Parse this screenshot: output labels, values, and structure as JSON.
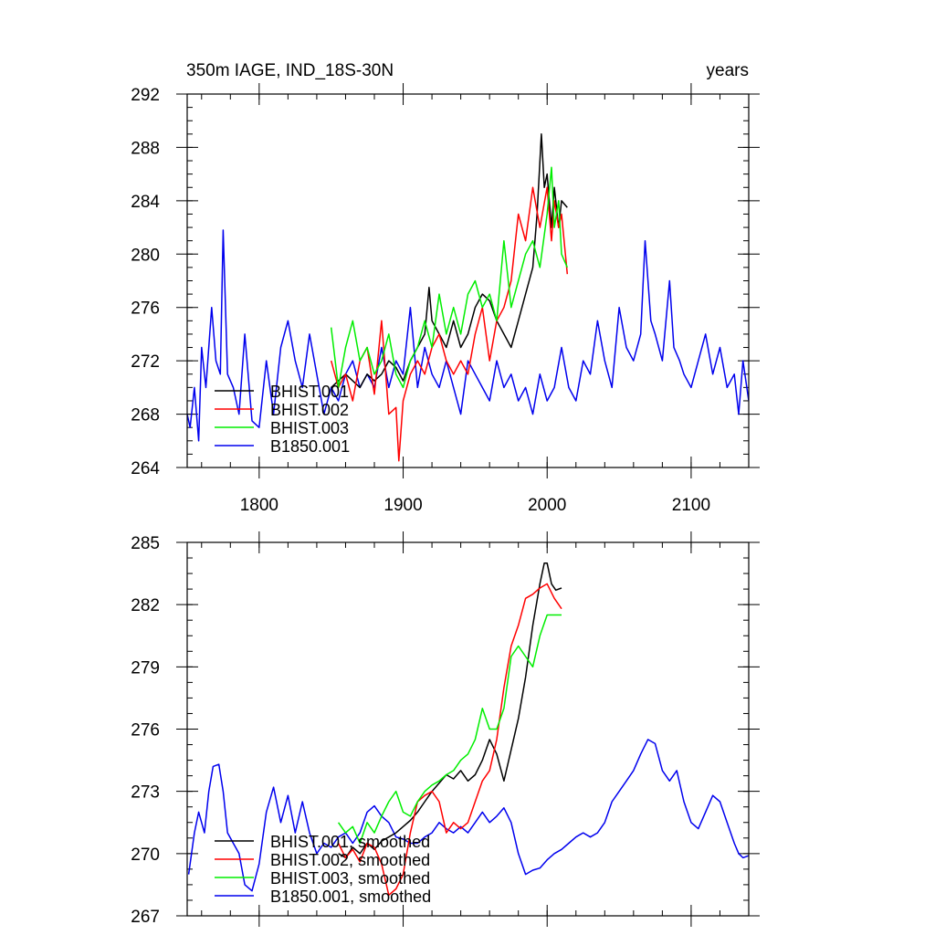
{
  "chart_data": [
    {
      "type": "line",
      "title_left": "350m IAGE, IND_18S-30N",
      "title_right": "years",
      "xlim": [
        1750,
        2140
      ],
      "ylim": [
        264,
        292
      ],
      "yticks": [
        264,
        268,
        272,
        276,
        280,
        284,
        288,
        292
      ],
      "xticks": [
        1800,
        1900,
        2000,
        2100
      ],
      "legend": "bottom-left",
      "series": [
        {
          "name": "BHIST.001",
          "color": "#000000",
          "x": [
            1850,
            1855,
            1860,
            1865,
            1870,
            1875,
            1880,
            1885,
            1890,
            1895,
            1900,
            1905,
            1910,
            1915,
            1918,
            1920,
            1925,
            1930,
            1935,
            1940,
            1945,
            1950,
            1955,
            1960,
            1965,
            1970,
            1975,
            1980,
            1985,
            1990,
            1993,
            1996,
            1998,
            2000,
            2003,
            2005,
            2008,
            2010,
            2014
          ],
          "y": [
            270,
            270.5,
            271,
            270.5,
            270,
            271,
            270.5,
            271,
            272,
            271.5,
            270.5,
            272,
            273,
            274,
            277.5,
            275,
            274,
            273,
            275,
            273,
            274,
            276,
            277,
            276.5,
            275,
            274,
            273,
            275,
            277,
            279,
            283,
            289,
            285,
            286,
            282,
            285,
            282,
            284,
            283.5
          ]
        },
        {
          "name": "BHIST.002",
          "color": "#ff0000",
          "x": [
            1850,
            1855,
            1860,
            1865,
            1870,
            1875,
            1880,
            1885,
            1890,
            1895,
            1897,
            1900,
            1905,
            1910,
            1915,
            1920,
            1925,
            1930,
            1935,
            1940,
            1945,
            1950,
            1955,
            1960,
            1965,
            1970,
            1975,
            1980,
            1985,
            1990,
            1995,
            2000,
            2003,
            2005,
            2008,
            2010,
            2014
          ],
          "y": [
            272,
            270,
            271,
            269,
            272,
            273,
            269.5,
            275,
            268,
            268.5,
            264.5,
            269,
            271,
            272,
            271,
            273,
            274,
            272,
            271,
            272,
            271,
            274,
            276,
            272,
            275,
            276,
            278,
            283,
            281,
            285,
            282,
            285,
            281,
            284,
            282,
            283,
            278.5
          ]
        },
        {
          "name": "BHIST.003",
          "color": "#00ee00",
          "x": [
            1850,
            1855,
            1860,
            1865,
            1870,
            1875,
            1880,
            1885,
            1890,
            1895,
            1900,
            1905,
            1910,
            1915,
            1920,
            1925,
            1930,
            1935,
            1940,
            1945,
            1950,
            1955,
            1960,
            1965,
            1970,
            1975,
            1980,
            1985,
            1990,
            1995,
            2000,
            2003,
            2005,
            2008,
            2010,
            2014
          ],
          "y": [
            274.5,
            270,
            273,
            275,
            272,
            273,
            271,
            272,
            274,
            271,
            270,
            272,
            273,
            275,
            273,
            277,
            274,
            276,
            274,
            277,
            278,
            276,
            277,
            275,
            281,
            276,
            278,
            280,
            281,
            279,
            283,
            286.5,
            282,
            284,
            280,
            279
          ]
        },
        {
          "name": "B1850.001",
          "color": "#0000ee",
          "x": [
            1750,
            1752,
            1755,
            1758,
            1760,
            1763,
            1767,
            1770,
            1773,
            1775,
            1778,
            1782,
            1786,
            1790,
            1795,
            1800,
            1805,
            1810,
            1815,
            1820,
            1825,
            1830,
            1835,
            1840,
            1845,
            1850,
            1855,
            1860,
            1865,
            1870,
            1875,
            1880,
            1885,
            1890,
            1895,
            1900,
            1905,
            1910,
            1915,
            1920,
            1925,
            1930,
            1935,
            1940,
            1945,
            1950,
            1955,
            1960,
            1965,
            1970,
            1975,
            1980,
            1985,
            1990,
            1995,
            2000,
            2005,
            2010,
            2015,
            2020,
            2025,
            2030,
            2035,
            2040,
            2045,
            2050,
            2055,
            2060,
            2065,
            2068,
            2072,
            2075,
            2080,
            2085,
            2088,
            2092,
            2095,
            2100,
            2105,
            2110,
            2115,
            2120,
            2125,
            2130,
            2133,
            2136,
            2140
          ],
          "y": [
            268,
            267,
            270,
            266,
            273,
            270,
            276,
            272,
            271,
            281.8,
            271,
            270,
            268,
            274,
            267.5,
            267,
            272,
            268,
            273,
            275,
            272,
            270,
            274,
            271,
            268,
            270,
            269,
            271,
            272,
            270,
            271,
            270,
            273,
            270,
            272,
            271,
            276,
            270,
            273,
            271,
            270,
            272,
            270,
            268,
            272,
            271,
            270,
            269,
            272,
            270,
            271,
            269,
            270,
            268,
            271,
            269,
            270,
            273,
            270,
            269,
            272,
            271,
            275,
            272,
            270,
            276,
            273,
            272,
            274,
            281,
            275,
            274,
            272,
            278,
            273,
            272,
            271,
            270,
            272,
            274,
            271,
            273,
            270,
            271,
            268,
            272,
            269
          ]
        }
      ]
    },
    {
      "type": "line",
      "xlim": [
        1750,
        2140
      ],
      "ylim": [
        267,
        285
      ],
      "yticks": [
        267,
        270,
        273,
        276,
        279,
        282,
        285
      ],
      "legend": "bottom-left",
      "series": [
        {
          "name": "BHIST.001, smoothed",
          "color": "#000000",
          "x": [
            1855,
            1860,
            1865,
            1870,
            1875,
            1880,
            1885,
            1890,
            1895,
            1900,
            1905,
            1910,
            1915,
            1920,
            1925,
            1930,
            1935,
            1940,
            1945,
            1950,
            1955,
            1960,
            1965,
            1970,
            1975,
            1980,
            1985,
            1990,
            1995,
            1998,
            2000,
            2003,
            2006,
            2010
          ],
          "y": [
            270,
            269.8,
            270.3,
            270,
            270.5,
            270.2,
            270.6,
            270.8,
            271,
            271.3,
            271.6,
            272,
            272.5,
            273,
            273.4,
            273.8,
            273.6,
            274,
            273.5,
            273.8,
            274.5,
            275.5,
            274.8,
            273.5,
            275,
            276.5,
            278.5,
            281,
            283,
            284,
            284,
            283,
            282.7,
            282.8
          ]
        },
        {
          "name": "BHIST.002, smoothed",
          "color": "#ff0000",
          "x": [
            1855,
            1860,
            1865,
            1870,
            1875,
            1880,
            1885,
            1890,
            1895,
            1900,
            1905,
            1910,
            1915,
            1920,
            1925,
            1930,
            1935,
            1940,
            1945,
            1950,
            1955,
            1960,
            1965,
            1970,
            1975,
            1980,
            1985,
            1990,
            1995,
            2000,
            2005,
            2010
          ],
          "y": [
            270.5,
            269.8,
            270.2,
            269.6,
            270.5,
            270.3,
            269.5,
            268,
            268.3,
            269,
            271,
            272.5,
            272.8,
            273,
            272.5,
            271,
            271.5,
            271.2,
            271.5,
            272.5,
            273.5,
            274,
            275.5,
            278,
            280,
            281,
            282.3,
            282.5,
            282.8,
            283,
            282.3,
            281.8
          ]
        },
        {
          "name": "BHIST.003, smoothed",
          "color": "#00ee00",
          "x": [
            1855,
            1860,
            1865,
            1870,
            1875,
            1880,
            1885,
            1890,
            1895,
            1900,
            1905,
            1910,
            1915,
            1920,
            1925,
            1930,
            1935,
            1940,
            1945,
            1950,
            1955,
            1960,
            1965,
            1970,
            1975,
            1980,
            1985,
            1990,
            1995,
            2000,
            2005,
            2010
          ],
          "y": [
            271.5,
            271,
            271.3,
            270.5,
            271.5,
            271,
            271.8,
            272.5,
            273,
            272,
            271.8,
            272.5,
            273,
            273.3,
            273.5,
            273.8,
            274,
            274.5,
            274.8,
            275.5,
            277,
            276,
            276,
            277,
            279.5,
            280,
            279.5,
            279,
            280.5,
            281.5,
            281.5,
            281.5
          ]
        },
        {
          "name": "B1850.001, smoothed",
          "color": "#0000ee",
          "x": [
            1751,
            1755,
            1758,
            1762,
            1765,
            1768,
            1772,
            1775,
            1778,
            1782,
            1786,
            1790,
            1795,
            1800,
            1805,
            1810,
            1815,
            1820,
            1825,
            1830,
            1835,
            1840,
            1845,
            1850,
            1855,
            1860,
            1865,
            1870,
            1875,
            1880,
            1885,
            1890,
            1895,
            1900,
            1905,
            1910,
            1915,
            1920,
            1925,
            1930,
            1935,
            1940,
            1945,
            1950,
            1955,
            1960,
            1965,
            1970,
            1975,
            1980,
            1985,
            1990,
            1995,
            2000,
            2005,
            2010,
            2015,
            2020,
            2025,
            2030,
            2035,
            2040,
            2045,
            2050,
            2055,
            2060,
            2065,
            2070,
            2075,
            2080,
            2085,
            2090,
            2095,
            2100,
            2105,
            2110,
            2115,
            2120,
            2125,
            2130,
            2133,
            2136,
            2140
          ],
          "y": [
            269,
            271,
            272,
            271,
            273,
            274.2,
            274.3,
            273,
            271,
            270.5,
            270,
            268.5,
            268.2,
            269.5,
            272,
            273.2,
            271.5,
            272.8,
            271,
            272.5,
            271,
            270,
            270.5,
            270.3,
            270.8,
            271,
            270.5,
            271,
            272,
            272.3,
            271.8,
            271.5,
            270.8,
            270.7,
            270.5,
            270.5,
            270.8,
            271,
            271.5,
            271.2,
            271,
            271.3,
            271,
            271.5,
            272,
            271.5,
            271.8,
            272.2,
            271.5,
            270,
            269,
            269.2,
            269.3,
            269.7,
            270,
            270.2,
            270.5,
            270.8,
            271,
            270.8,
            271,
            271.5,
            272.5,
            273,
            273.5,
            274,
            274.8,
            275.5,
            275.3,
            274,
            273.5,
            274,
            272.5,
            271.5,
            271.2,
            272,
            272.8,
            272.5,
            271.5,
            270.5,
            270,
            269.8,
            269.9
          ]
        }
      ]
    }
  ]
}
